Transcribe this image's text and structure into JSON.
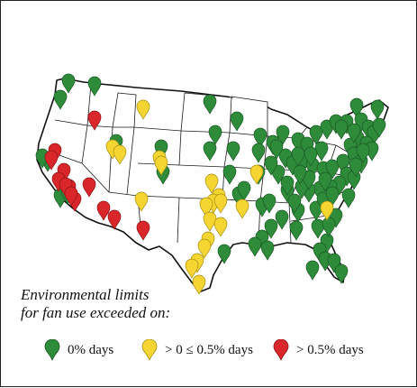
{
  "caption": {
    "line1": "Environmental limits",
    "line2": "for fan use exceeded on:"
  },
  "legend": [
    {
      "category": "green",
      "label": "0% days",
      "color": "#2e8b3a"
    },
    {
      "category": "yellow",
      "label": "> 0 ≤ 0.5% days",
      "color": "#f5d531"
    },
    {
      "category": "red",
      "label": "> 0.5% days",
      "color": "#d9262a"
    }
  ],
  "marker_counts": {
    "green": 94,
    "yellow": 21,
    "red": 13
  }
}
